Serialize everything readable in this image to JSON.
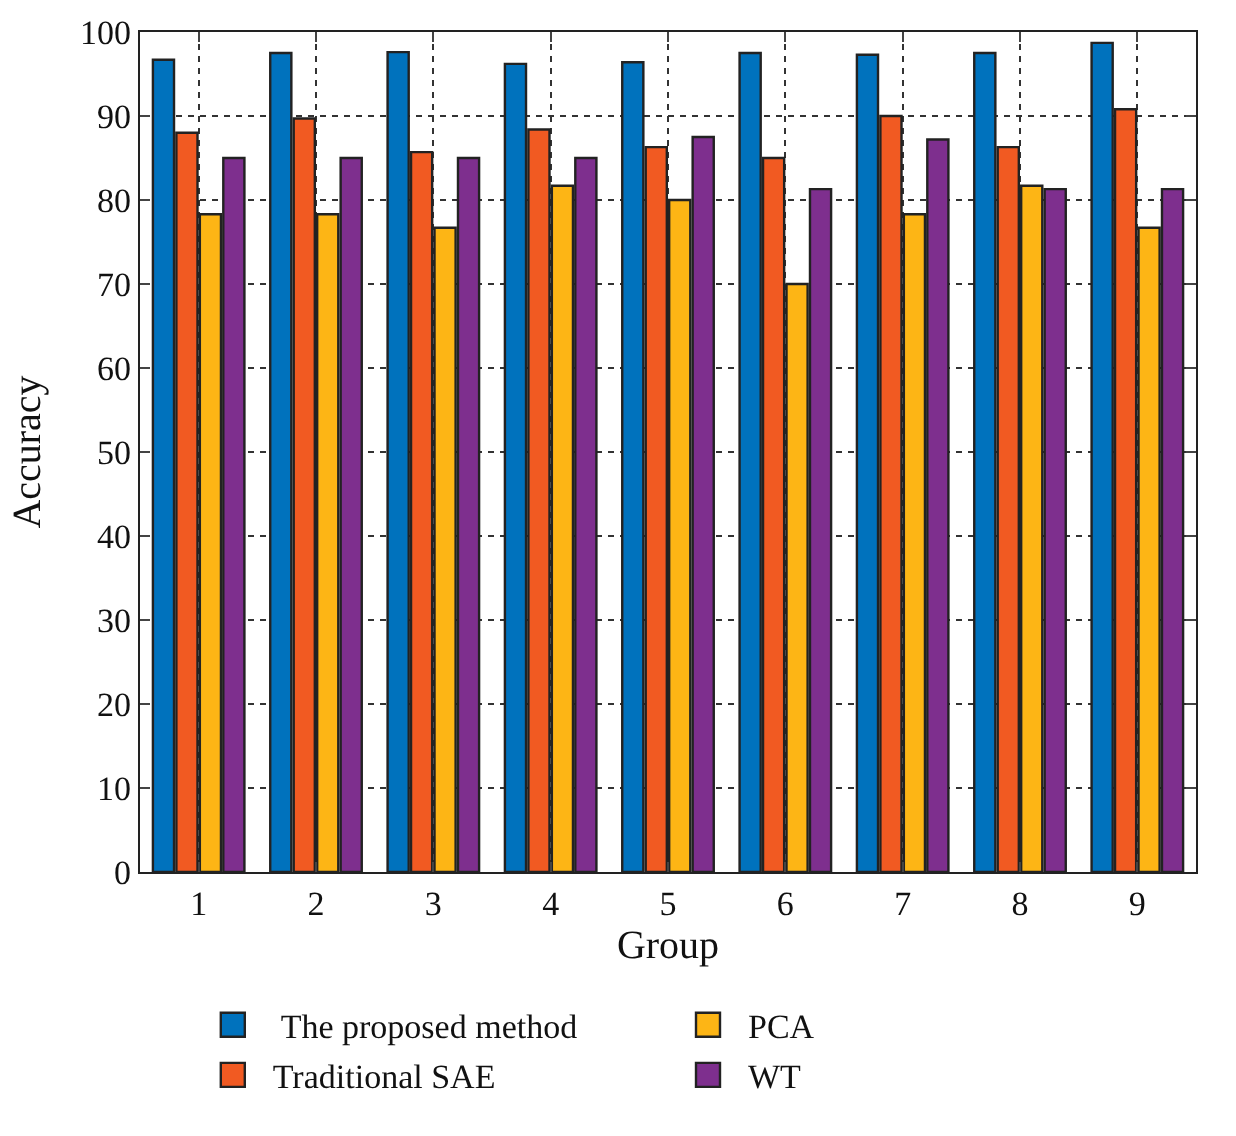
{
  "chart_data": {
    "type": "bar",
    "xlabel": "Group",
    "ylabel": "Accuracy",
    "categories": [
      "1",
      "2",
      "3",
      "4",
      "5",
      "6",
      "7",
      "8",
      "9"
    ],
    "series": [
      {
        "name": " The proposed method",
        "color": "#0072bd",
        "values": [
          96.7,
          97.5,
          97.6,
          96.2,
          96.4,
          97.5,
          97.3,
          97.5,
          98.7
        ]
      },
      {
        "name": "Traditional SAE",
        "color": "#f15a22",
        "values": [
          88,
          89.7,
          85.7,
          88.4,
          86.3,
          85,
          90,
          86.3,
          90.8
        ]
      },
      {
        "name": "PCA",
        "color": "#fdb515",
        "values": [
          78.3,
          78.3,
          76.7,
          81.7,
          80,
          70,
          78.3,
          81.7,
          76.7
        ]
      },
      {
        "name": "WT",
        "color": "#7e2f8e",
        "values": [
          85,
          85,
          85,
          85,
          87.5,
          81.3,
          87.2,
          81.3,
          81.3
        ]
      }
    ],
    "ylim": [
      0,
      100
    ],
    "yticks": [
      0,
      10,
      20,
      30,
      40,
      50,
      60,
      70,
      80,
      90,
      100
    ],
    "grid": true,
    "legend": "bottom"
  }
}
